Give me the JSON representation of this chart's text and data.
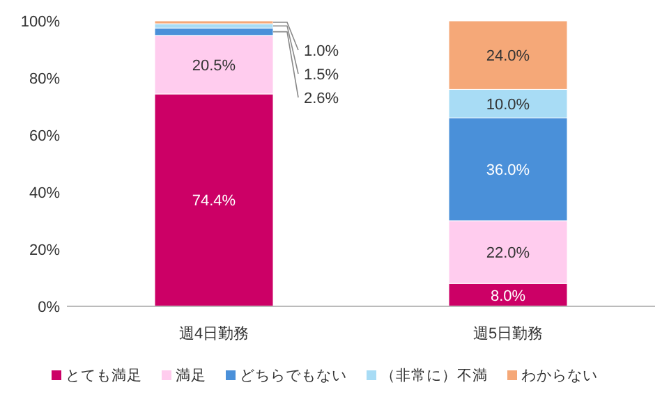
{
  "chart_data": {
    "type": "bar",
    "stacked": true,
    "categories": [
      "週4日勤務",
      "週5日勤務"
    ],
    "ylim": [
      0,
      100
    ],
    "yticks": [
      {
        "value": 0,
        "label": "0%"
      },
      {
        "value": 20,
        "label": "20%"
      },
      {
        "value": 40,
        "label": "40%"
      },
      {
        "value": 60,
        "label": "60%"
      },
      {
        "value": 80,
        "label": "80%"
      },
      {
        "value": 100,
        "label": "100%"
      }
    ],
    "grid": false,
    "legend": "bottom",
    "series": [
      {
        "name": "とても満足",
        "color": "#cc0066",
        "values": [
          74.4,
          8.0
        ],
        "value_labels": [
          "74.4%",
          "8.0%"
        ]
      },
      {
        "name": "満足",
        "color": "#ffccee",
        "values": [
          20.5,
          22.0
        ],
        "value_labels": [
          "20.5%",
          "22.0%"
        ]
      },
      {
        "name": "どちらでもない",
        "color": "#4a90d9",
        "values": [
          2.6,
          36.0
        ],
        "value_labels": [
          "2.6%",
          "36.0%"
        ]
      },
      {
        "name": "（非常に）不満",
        "color": "#a8dcf5",
        "values": [
          1.5,
          10.0
        ],
        "value_labels": [
          "1.5%",
          "10.0%"
        ]
      },
      {
        "name": "わからない",
        "color": "#f5a878",
        "values": [
          1.0,
          24.0
        ],
        "value_labels": [
          "1.0%",
          "24.0%"
        ]
      }
    ]
  }
}
